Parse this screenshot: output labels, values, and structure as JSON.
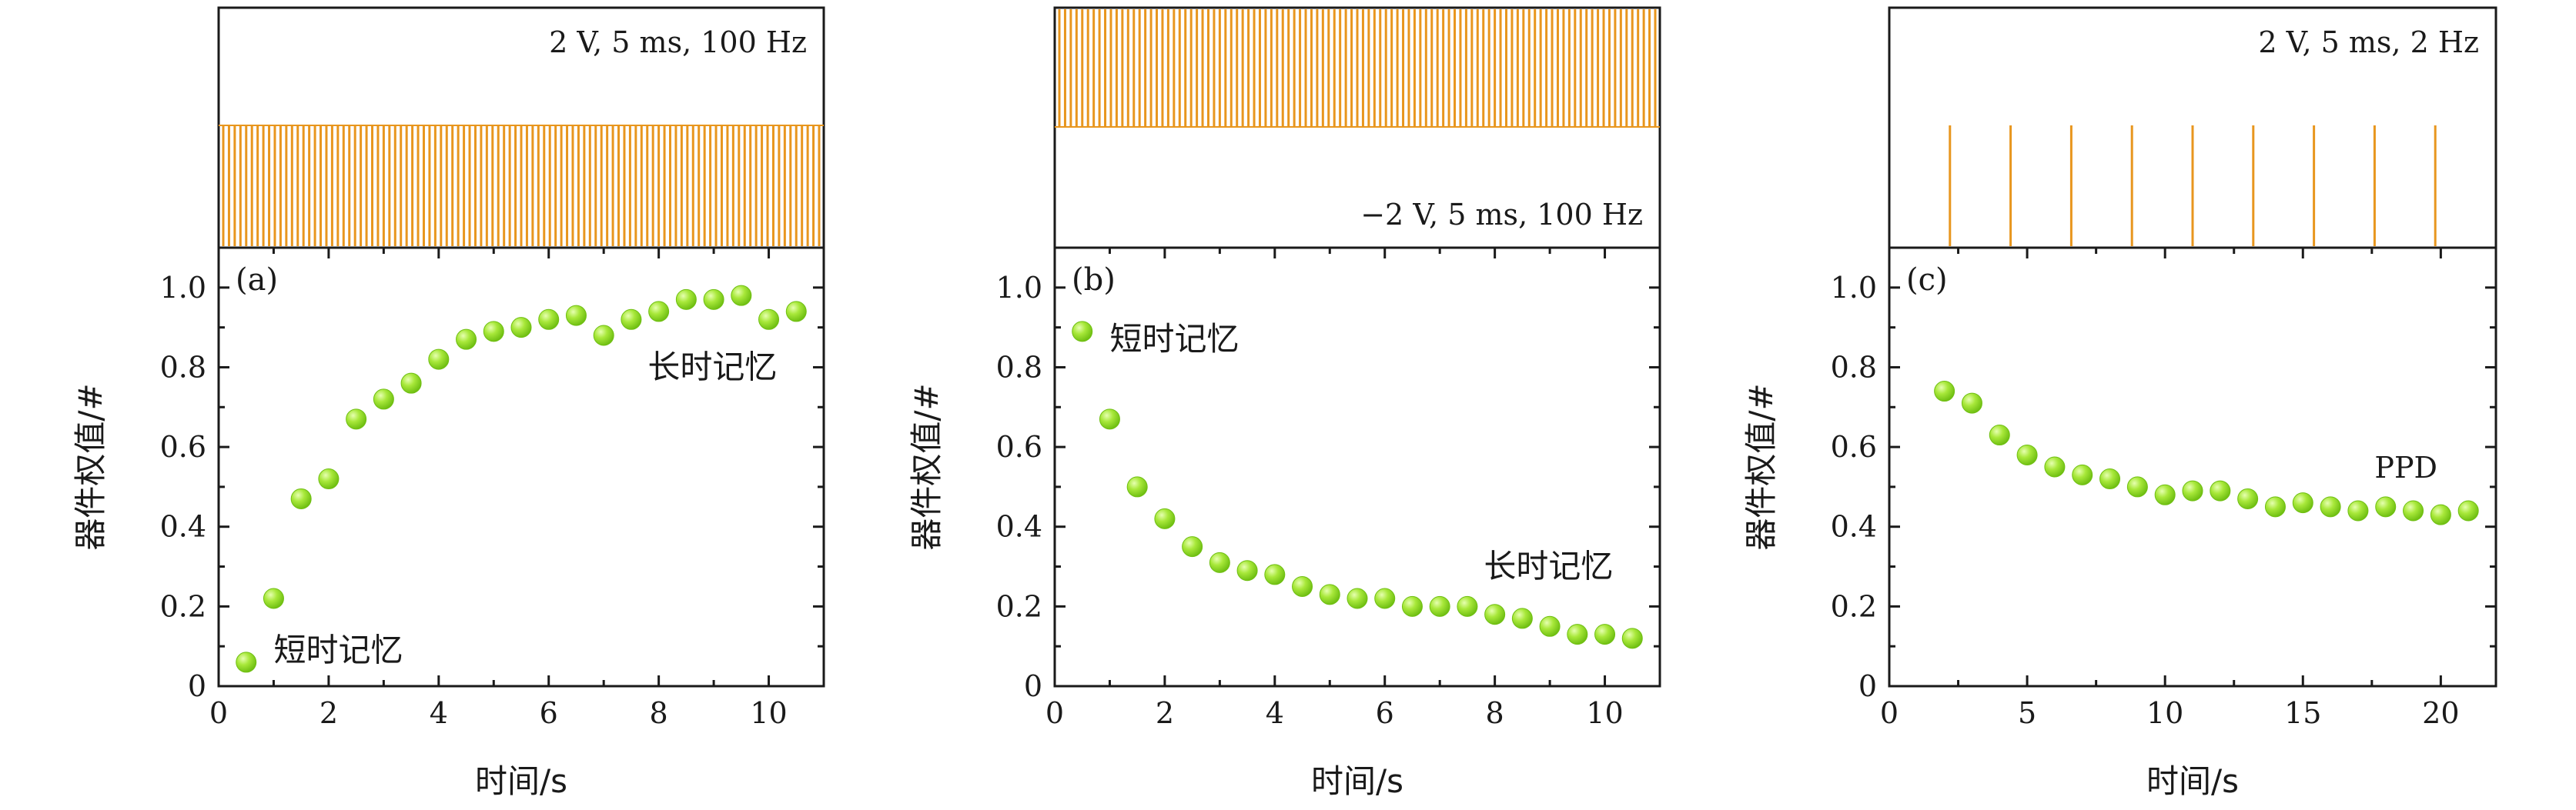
{
  "colors": {
    "pulse": "#e8961e",
    "marker": "#8fdc1f",
    "marker_light": "#e6ffb0",
    "axis": "#1a1a1a"
  },
  "chart_data": [
    {
      "type": "scatter",
      "panel_label": "(a)",
      "pulse": {
        "label": "2 V, 5 ms, 100 Hz",
        "kind": "dense-positive"
      },
      "xlabel": "时间/s",
      "ylabel": "器件权值/#",
      "xlim": [
        0,
        11
      ],
      "ylim": [
        0,
        1.1
      ],
      "xticks": [
        0,
        2,
        4,
        6,
        8,
        10
      ],
      "yticks": [
        0,
        0.2,
        0.4,
        0.6,
        0.8,
        1.0
      ],
      "yticklabels": [
        "0",
        "0.2",
        "0.4",
        "0.6",
        "0.8",
        "1.0"
      ],
      "x": [
        0.5,
        1.0,
        1.5,
        2.0,
        2.5,
        3.0,
        3.5,
        4.0,
        4.5,
        5.0,
        5.5,
        6.0,
        6.5,
        7.0,
        7.5,
        8.0,
        8.5,
        9.0,
        9.5,
        10.0,
        10.5
      ],
      "y": [
        0.06,
        0.22,
        0.47,
        0.52,
        0.67,
        0.72,
        0.76,
        0.82,
        0.87,
        0.89,
        0.9,
        0.92,
        0.93,
        0.88,
        0.92,
        0.94,
        0.97,
        0.97,
        0.98,
        0.92,
        0.94
      ],
      "annotations": [
        {
          "text": "短时记忆",
          "x": 1.0,
          "y": 0.09
        },
        {
          "text": "长时记忆",
          "x": 7.8,
          "y": 0.8
        }
      ]
    },
    {
      "type": "scatter",
      "panel_label": "(b)",
      "pulse": {
        "label": "−2 V, 5 ms, 100 Hz",
        "kind": "dense-negative"
      },
      "xlabel": "时间/s",
      "ylabel": "器件权值/#",
      "xlim": [
        0,
        11
      ],
      "ylim": [
        0,
        1.1
      ],
      "xticks": [
        0,
        2,
        4,
        6,
        8,
        10
      ],
      "yticks": [
        0,
        0.2,
        0.4,
        0.6,
        0.8,
        1.0
      ],
      "yticklabels": [
        "0",
        "0.2",
        "0.4",
        "0.6",
        "0.8",
        "1.0"
      ],
      "x": [
        0.5,
        1.0,
        1.5,
        2.0,
        2.5,
        3.0,
        3.5,
        4.0,
        4.5,
        5.0,
        5.5,
        6.0,
        6.5,
        7.0,
        7.5,
        8.0,
        8.5,
        9.0,
        9.5,
        10.0,
        10.5
      ],
      "y": [
        0.89,
        0.67,
        0.5,
        0.42,
        0.35,
        0.31,
        0.29,
        0.28,
        0.25,
        0.23,
        0.22,
        0.22,
        0.2,
        0.2,
        0.2,
        0.18,
        0.17,
        0.15,
        0.13,
        0.13,
        0.12
      ],
      "annotations": [
        {
          "text": "短时记忆",
          "x": 1.0,
          "y": 0.87
        },
        {
          "text": "长时记忆",
          "x": 7.8,
          "y": 0.3
        }
      ]
    },
    {
      "type": "scatter",
      "panel_label": "(c)",
      "pulse": {
        "label": "2 V, 5 ms, 2 Hz",
        "kind": "sparse-positive",
        "times": [
          1.1,
          2.2,
          3.3,
          4.4,
          5.5,
          6.6,
          7.7,
          8.8,
          9.9
        ]
      },
      "xlabel": "时间/s",
      "ylabel": "器件权值/#",
      "xlim": [
        0,
        22
      ],
      "ylim": [
        0,
        1.1
      ],
      "xticks": [
        0,
        5,
        10,
        15,
        20
      ],
      "yticks": [
        0,
        0.2,
        0.4,
        0.6,
        0.8,
        1.0
      ],
      "yticklabels": [
        "0",
        "0.2",
        "0.4",
        "0.6",
        "0.8",
        "1.0"
      ],
      "x": [
        2,
        3,
        4,
        5,
        6,
        7,
        8,
        9,
        10,
        11,
        12,
        13,
        14,
        15,
        16,
        17,
        18,
        19,
        20,
        21
      ],
      "y": [
        0.74,
        0.71,
        0.63,
        0.58,
        0.55,
        0.53,
        0.52,
        0.5,
        0.48,
        0.49,
        0.49,
        0.47,
        0.45,
        0.46,
        0.45,
        0.44,
        0.45,
        0.44,
        0.43,
        0.44
      ],
      "annotations": [
        {
          "text": "PPD",
          "x": 17.6,
          "y": 0.55
        }
      ]
    }
  ]
}
